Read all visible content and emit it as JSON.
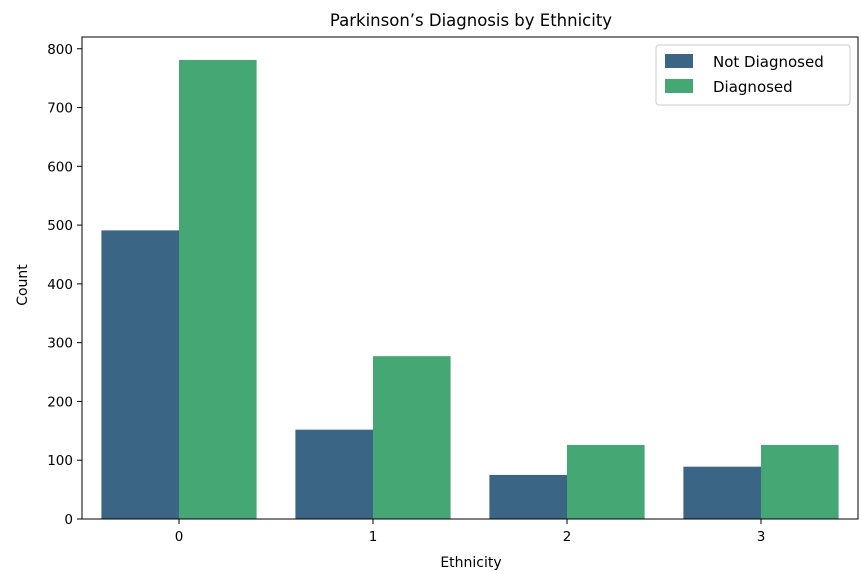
{
  "chart_data": {
    "type": "bar",
    "title": "Parkinson’s Diagnosis by Ethnicity",
    "xlabel": "Ethnicity",
    "ylabel": "Count",
    "categories": [
      "0",
      "1",
      "2",
      "3"
    ],
    "ylim": [
      0,
      820
    ],
    "yticks": [
      0,
      100,
      200,
      300,
      400,
      500,
      600,
      700,
      800
    ],
    "grid": false,
    "legend_position": "top-right",
    "series": [
      {
        "name": "Not Diagnosed",
        "color": "#3b6585",
        "values": [
          491,
          152,
          75,
          89
        ]
      },
      {
        "name": "Diagnosed",
        "color": "#45a774",
        "values": [
          781,
          277,
          126,
          126
        ]
      }
    ]
  }
}
